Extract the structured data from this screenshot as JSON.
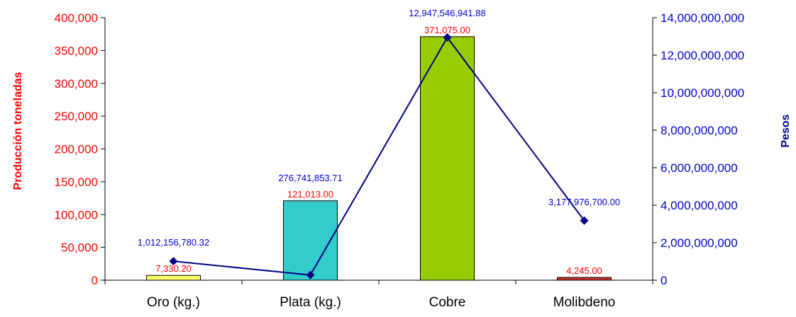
{
  "chart_data": {
    "type": "bar",
    "categories": [
      "Oro (kg.)",
      "Plata (kg.)",
      "Cobre",
      "Molibdeno"
    ],
    "series": [
      {
        "axis": "left",
        "type": "bar",
        "values": [
          7330.2,
          121013.0,
          371075.0,
          4245.0
        ],
        "value_labels": [
          "7,330.20",
          "121,013.00",
          "371,075.00",
          "4,245.00"
        ],
        "colors": [
          "#ffff66",
          "#33cccc",
          "#99cc00",
          "#cc3333"
        ]
      },
      {
        "axis": "right",
        "type": "line",
        "values": [
          1012156780.32,
          276741853.71,
          12947546941.88,
          3177976700.0
        ],
        "value_labels": [
          "1,012,156,780.32",
          "276,741,853.71",
          "12,947,546,941.88",
          "3,177,976,700.00"
        ],
        "color": "#000080"
      }
    ],
    "ylabel": "Producción toneladas",
    "y2label": "Pesos",
    "ylim": [
      0,
      400000
    ],
    "y2lim": [
      0,
      14000000000
    ],
    "yticks": [
      "0",
      "50,000",
      "100,000",
      "150,000",
      "200,000",
      "250,000",
      "300,000",
      "350,000",
      "400,000"
    ],
    "y2ticks": [
      "0",
      "2,000,000,000",
      "4,000,000,000",
      "6,000,000,000",
      "8,000,000,000",
      "10,000,000,000",
      "12,000,000,000",
      "14,000,000,000"
    ],
    "grid": false,
    "legend": "none"
  }
}
